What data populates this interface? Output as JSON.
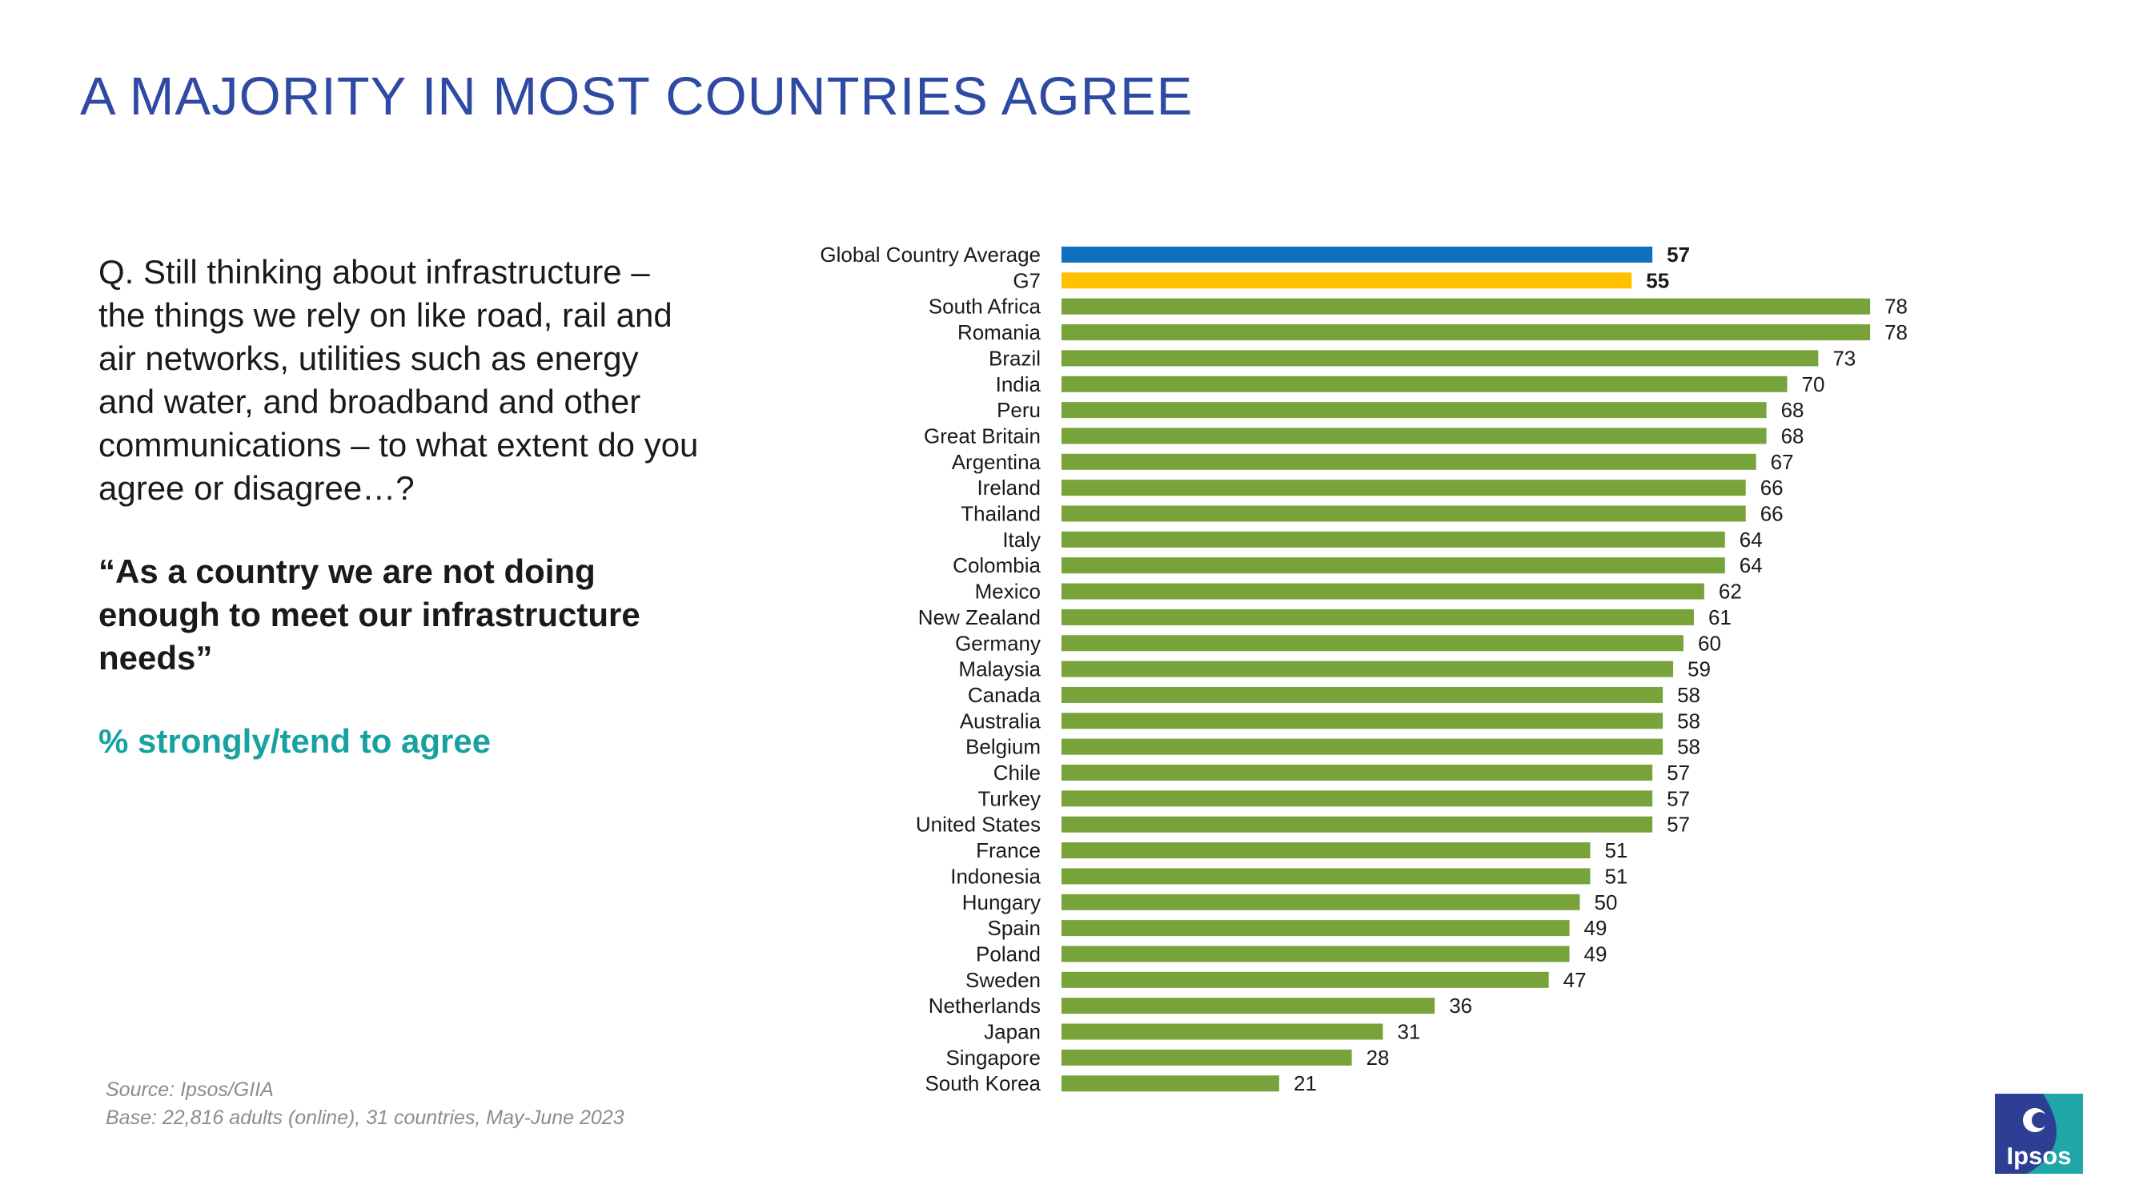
{
  "title": "A MAJORITY IN MOST COUNTRIES AGREE",
  "question": {
    "text": "Q. Still thinking about infrastructure – the things we rely on like road, rail and air networks, utilities such as energy and water, and broadband and other communications – to what extent do you agree or disagree…?",
    "statement": "“As a country we are not doing enough to meet our infrastructure needs”",
    "metric": "% strongly/tend to agree"
  },
  "source": {
    "line1": "Source: Ipsos/GIIA",
    "line2": "Base: 22,816 adults (online), 31 countries, May-June 2023"
  },
  "logo": {
    "text": "Ipsos"
  },
  "colors": {
    "average": "#1070c0",
    "g7": "#ffc000",
    "country": "#77a33a",
    "title": "#2f4aa3",
    "metric": "#17a1a1"
  },
  "chart_data": {
    "type": "bar",
    "orientation": "horizontal",
    "categories": [
      "Global Country Average",
      "G7",
      "South Africa",
      "Romania",
      "Brazil",
      "India",
      "Peru",
      "Great Britain",
      "Argentina",
      "Ireland",
      "Thailand",
      "Italy",
      "Colombia",
      "Mexico",
      "New Zealand",
      "Germany",
      "Malaysia",
      "Canada",
      "Australia",
      "Belgium",
      "Chile",
      "Turkey",
      "United States",
      "France",
      "Indonesia",
      "Hungary",
      "Spain",
      "Poland",
      "Sweden",
      "Netherlands",
      "Japan",
      "Singapore",
      "South Korea"
    ],
    "values": [
      57,
      55,
      78,
      78,
      73,
      70,
      68,
      68,
      67,
      66,
      66,
      64,
      64,
      62,
      61,
      60,
      59,
      58,
      58,
      58,
      57,
      57,
      57,
      51,
      51,
      50,
      49,
      49,
      47,
      36,
      31,
      28,
      21
    ],
    "bar_colors": [
      "average",
      "g7",
      "country",
      "country",
      "country",
      "country",
      "country",
      "country",
      "country",
      "country",
      "country",
      "country",
      "country",
      "country",
      "country",
      "country",
      "country",
      "country",
      "country",
      "country",
      "country",
      "country",
      "country",
      "country",
      "country",
      "country",
      "country",
      "country",
      "country",
      "country",
      "country",
      "country",
      "country"
    ],
    "bold_labels": [
      true,
      true,
      false,
      false,
      false,
      false,
      false,
      false,
      false,
      false,
      false,
      false,
      false,
      false,
      false,
      false,
      false,
      false,
      false,
      false,
      false,
      false,
      false,
      false,
      false,
      false,
      false,
      false,
      false,
      false,
      false,
      false,
      false
    ],
    "xlim": [
      0,
      100
    ],
    "title": "",
    "xlabel": "",
    "ylabel": "",
    "grid": false,
    "data_labels": true
  }
}
